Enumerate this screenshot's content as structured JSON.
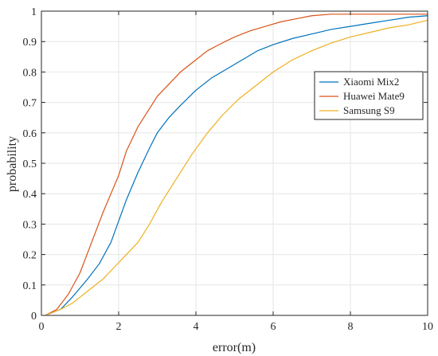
{
  "chart_data": {
    "type": "line",
    "title": "",
    "xlabel": "error(m)",
    "ylabel": "probability",
    "xlim": [
      0,
      10
    ],
    "ylim": [
      0,
      1
    ],
    "xticks": [
      0,
      2,
      4,
      6,
      8,
      10
    ],
    "yticks": [
      0,
      0.1,
      0.2,
      0.3,
      0.4,
      0.5,
      0.6,
      0.7,
      0.8,
      0.9,
      1
    ],
    "xtick_labels": [
      "0",
      "2",
      "4",
      "6",
      "8",
      "10"
    ],
    "ytick_labels": [
      "0",
      "0.1",
      "0.2",
      "0.3",
      "0.4",
      "0.5",
      "0.6",
      "0.7",
      "0.8",
      "0.9",
      "1"
    ],
    "grid": true,
    "legend_position": "right",
    "series": [
      {
        "name": "Xiaomi Mix2",
        "color": "#0072BD",
        "x": [
          0.1,
          0.5,
          0.8,
          1.0,
          1.2,
          1.5,
          1.8,
          2.0,
          2.2,
          2.5,
          2.8,
          3.0,
          3.3,
          3.6,
          4.0,
          4.4,
          4.8,
          5.2,
          5.6,
          6.0,
          6.5,
          7.0,
          7.5,
          8.0,
          8.5,
          9.0,
          9.5,
          10.0
        ],
        "y": [
          0.0,
          0.02,
          0.06,
          0.09,
          0.12,
          0.17,
          0.24,
          0.31,
          0.38,
          0.47,
          0.55,
          0.6,
          0.65,
          0.69,
          0.74,
          0.78,
          0.81,
          0.84,
          0.87,
          0.89,
          0.91,
          0.925,
          0.94,
          0.95,
          0.96,
          0.97,
          0.98,
          0.985
        ]
      },
      {
        "name": "Huawei Mate9",
        "color": "#D95319",
        "x": [
          0.1,
          0.4,
          0.7,
          1.0,
          1.3,
          1.6,
          1.8,
          2.0,
          2.2,
          2.5,
          2.8,
          3.0,
          3.3,
          3.6,
          4.0,
          4.3,
          4.6,
          5.0,
          5.4,
          5.8,
          6.2,
          6.6,
          7.0,
          7.5,
          8.0,
          8.5,
          9.0,
          9.5,
          10.0
        ],
        "y": [
          0.0,
          0.02,
          0.07,
          0.14,
          0.24,
          0.34,
          0.4,
          0.46,
          0.54,
          0.62,
          0.68,
          0.72,
          0.76,
          0.8,
          0.84,
          0.87,
          0.89,
          0.915,
          0.935,
          0.95,
          0.965,
          0.975,
          0.985,
          0.99,
          0.99,
          0.99,
          0.99,
          0.99,
          0.99
        ]
      },
      {
        "name": "Samsung S9",
        "color": "#EDB120",
        "x": [
          0.1,
          0.5,
          0.8,
          1.0,
          1.3,
          1.6,
          1.9,
          2.2,
          2.5,
          2.8,
          3.1,
          3.5,
          3.9,
          4.3,
          4.7,
          5.1,
          5.5,
          6.0,
          6.5,
          7.0,
          7.5,
          8.0,
          8.5,
          9.0,
          9.5,
          10.0
        ],
        "y": [
          0.0,
          0.02,
          0.04,
          0.06,
          0.09,
          0.12,
          0.16,
          0.2,
          0.24,
          0.3,
          0.37,
          0.45,
          0.53,
          0.6,
          0.66,
          0.71,
          0.75,
          0.8,
          0.84,
          0.87,
          0.895,
          0.915,
          0.93,
          0.945,
          0.955,
          0.97
        ]
      }
    ]
  }
}
